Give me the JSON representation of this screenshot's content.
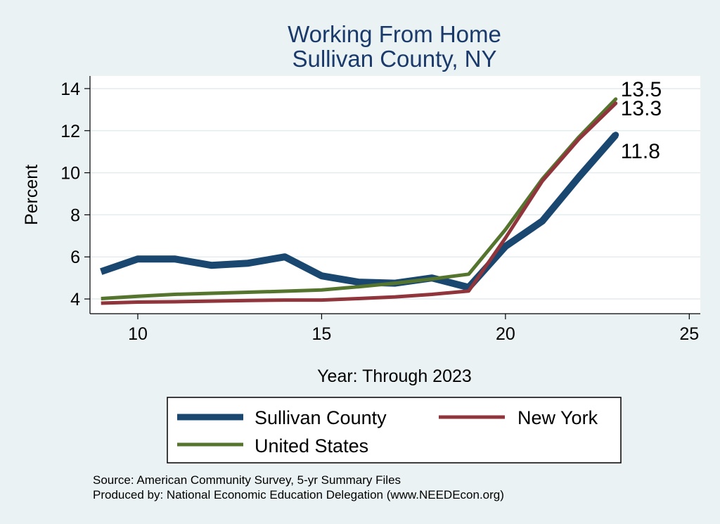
{
  "chart_data": {
    "type": "line",
    "title": "Working From Home",
    "subtitle": "Sullivan County, NY",
    "xlabel": "Year: Through 2023",
    "ylabel": "Percent",
    "xlim": [
      8.7,
      25.3
    ],
    "ylim": [
      3.3,
      14.6
    ],
    "xticks": [
      10,
      15,
      20,
      25
    ],
    "yticks": [
      4,
      6,
      8,
      10,
      12,
      14
    ],
    "grid": true,
    "legend_position": "bottom",
    "series": [
      {
        "name": "Sullivan County",
        "color": "#1a476f",
        "x": [
          9,
          10,
          11,
          12,
          13,
          14,
          15,
          16,
          17,
          18,
          19,
          20,
          21,
          22,
          23
        ],
        "values": [
          5.3,
          5.9,
          5.9,
          5.6,
          5.7,
          6.0,
          5.1,
          4.8,
          4.75,
          5.0,
          4.55,
          6.5,
          7.7,
          9.8,
          11.8
        ],
        "end_label": "11.8"
      },
      {
        "name": "New York",
        "color": "#90353b",
        "x": [
          9,
          10,
          11,
          12,
          13,
          14,
          15,
          16,
          17,
          18,
          19,
          20,
          21,
          22,
          23
        ],
        "values": [
          3.8,
          3.85,
          3.87,
          3.9,
          3.93,
          3.95,
          3.95,
          4.02,
          4.1,
          4.22,
          4.38,
          6.9,
          9.6,
          11.6,
          13.3
        ],
        "end_label": "13.3"
      },
      {
        "name": "United States",
        "color": "#55752f",
        "x": [
          9,
          10,
          11,
          12,
          13,
          14,
          15,
          16,
          17,
          18,
          19,
          20,
          21,
          22,
          23
        ],
        "values": [
          4.02,
          4.13,
          4.22,
          4.27,
          4.32,
          4.37,
          4.43,
          4.58,
          4.75,
          4.95,
          5.18,
          7.3,
          9.7,
          11.7,
          13.5
        ],
        "end_label": "13.5"
      }
    ],
    "notes": [
      "Source: American Community Survey, 5-yr Summary Files",
      "Produced by: National Economic Education Delegation (www.NEEDEcon.org)"
    ]
  }
}
